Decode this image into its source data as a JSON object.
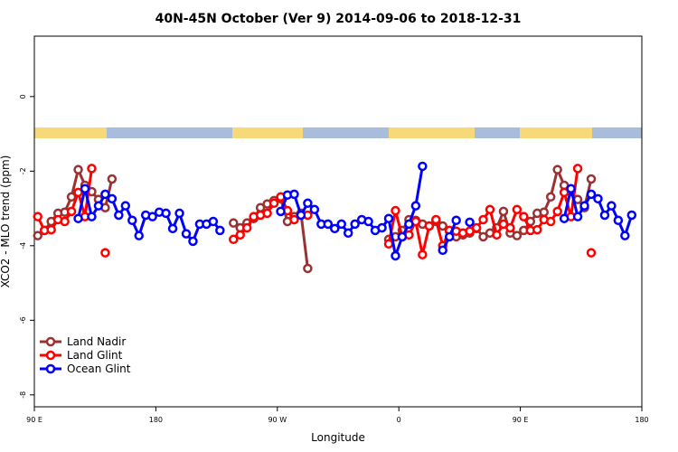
{
  "chart_data": {
    "type": "line",
    "title": "40N-45N October (Ver 9)   2014-09-06 to 2018-12-31",
    "x_label": "Longitude",
    "y_label": "XCO2 - MLO trend (ppm)",
    "x": [
      92.5,
      97.5,
      102.5,
      107.5,
      112.5,
      117.5,
      122.5,
      127.5,
      132.5,
      137.5,
      142.5,
      147.5,
      152.5,
      157.5,
      162.5,
      167.5,
      172.5,
      177.5,
      182.5,
      187.5,
      192.5,
      197.5,
      202.5,
      207.5,
      212.5,
      217.5,
      222.5,
      227.5,
      232.5,
      237.5,
      242.5,
      247.5,
      252.5,
      257.5,
      262.5,
      267.5,
      272.5,
      277.5,
      282.5,
      287.5,
      292.5,
      297.5,
      302.5,
      307.5,
      312.5,
      317.5,
      322.5,
      327.5,
      332.5,
      337.5,
      342.5,
      347.5,
      352.5,
      357.5,
      362.5,
      367.5,
      372.5,
      377.5,
      382.5,
      387.5,
      392.5,
      397.5,
      402.5,
      407.5,
      412.5,
      417.5,
      422.5,
      427.5,
      432.5,
      437.5,
      442.5,
      447.5,
      452.5,
      457.5,
      462.5,
      467.5,
      472.5,
      477.5,
      482.5,
      487.5,
      492.5,
      497.5,
      502.5,
      507.5,
      512.5,
      517.5,
      522.5,
      527.5,
      532.5
    ],
    "series": [
      {
        "name": "Land Nadir",
        "color": "#993333",
        "values": [
          -3.73,
          -3.59,
          -3.35,
          -3.13,
          -3.1,
          -2.69,
          -1.96,
          -2.38,
          -2.55,
          -2.76,
          -2.98,
          -2.21,
          null,
          null,
          null,
          null,
          null,
          null,
          null,
          null,
          null,
          null,
          null,
          null,
          null,
          null,
          null,
          null,
          null,
          -3.39,
          -3.52,
          -3.39,
          -3.27,
          -2.98,
          -2.88,
          -2.79,
          -2.74,
          -3.35,
          -3.22,
          -3.13,
          -4.61,
          null,
          null,
          null,
          null,
          null,
          null,
          null,
          null,
          null,
          null,
          null,
          -3.83,
          -3.76,
          -3.59,
          -3.3,
          -3.32,
          -3.42,
          -3.47,
          -3.35,
          -3.47,
          -3.61,
          -3.76,
          -3.71,
          -3.66,
          -3.54,
          -3.76,
          -3.66,
          -3.52,
          -3.08,
          -3.66,
          -3.73,
          -3.59,
          -3.35,
          -3.13,
          -3.1,
          -2.69,
          -1.96,
          -2.38,
          -2.55,
          -2.76,
          -2.98,
          -2.21,
          null,
          null,
          null,
          null,
          null,
          null
        ]
      },
      {
        "name": "Land Glint",
        "color": "#ff0000",
        "values": [
          -3.22,
          -3.59,
          -3.57,
          -3.3,
          -3.35,
          -3.08,
          -2.57,
          -3.22,
          -1.93,
          null,
          -4.19,
          null,
          null,
          null,
          null,
          null,
          null,
          null,
          null,
          null,
          null,
          null,
          null,
          null,
          null,
          null,
          null,
          null,
          null,
          -3.83,
          -3.71,
          -3.52,
          -3.22,
          -3.18,
          -3.13,
          -2.86,
          -2.69,
          -3.06,
          -3.3,
          -3.18,
          -3.18,
          null,
          null,
          null,
          null,
          null,
          null,
          null,
          null,
          null,
          null,
          null,
          -3.95,
          -3.06,
          -3.76,
          -3.71,
          -3.35,
          -4.24,
          -3.47,
          -3.3,
          -4.0,
          -3.59,
          -3.61,
          -3.66,
          -3.61,
          -3.52,
          -3.3,
          -3.03,
          -3.71,
          -3.42,
          -3.52,
          -3.03,
          -3.22,
          -3.59,
          -3.57,
          -3.3,
          -3.35,
          -3.08,
          -2.57,
          -3.22,
          -1.93,
          null,
          -4.19,
          null,
          null,
          null,
          null,
          null,
          null
        ]
      },
      {
        "name": "Ocean Glint",
        "color": "#0000ff",
        "values": [
          null,
          null,
          null,
          null,
          null,
          null,
          -3.27,
          -2.47,
          -3.22,
          -2.93,
          -2.62,
          -2.74,
          -3.18,
          -2.93,
          -3.32,
          -3.73,
          -3.18,
          -3.22,
          -3.1,
          -3.13,
          -3.54,
          -3.13,
          -3.68,
          -3.88,
          -3.42,
          -3.42,
          -3.35,
          -3.59,
          null,
          null,
          null,
          null,
          null,
          null,
          null,
          null,
          -3.08,
          -2.64,
          -2.62,
          -3.18,
          -2.86,
          -3.03,
          -3.42,
          -3.42,
          -3.54,
          -3.42,
          -3.66,
          -3.42,
          -3.3,
          -3.35,
          -3.59,
          -3.52,
          -3.27,
          -4.27,
          -3.76,
          -3.42,
          -2.93,
          -1.87,
          null,
          null,
          -4.12,
          -3.76,
          -3.32,
          null,
          -3.37,
          null,
          null,
          null,
          null,
          null,
          null,
          null,
          null,
          null,
          null,
          null,
          null,
          null,
          -3.27,
          -2.47,
          -3.22,
          -2.93,
          -2.62,
          -2.74,
          -3.18,
          -2.93,
          -3.32,
          -3.73,
          -3.18
        ]
      }
    ],
    "xlim": [
      90,
      540
    ],
    "xticks": [
      {
        "value": 90,
        "label": "90 E"
      },
      180,
      {
        "value": 270,
        "label": "90 W"
      },
      {
        "value": 360,
        "label": "0"
      },
      {
        "value": 450,
        "label": "90 E"
      },
      {
        "value": 540,
        "label": "180"
      }
    ],
    "ylim": [
      -8.32,
      1.62
    ],
    "yticks": [
      0,
      -2,
      -4,
      -6,
      -8
    ],
    "legend": "bottom-left"
  }
}
